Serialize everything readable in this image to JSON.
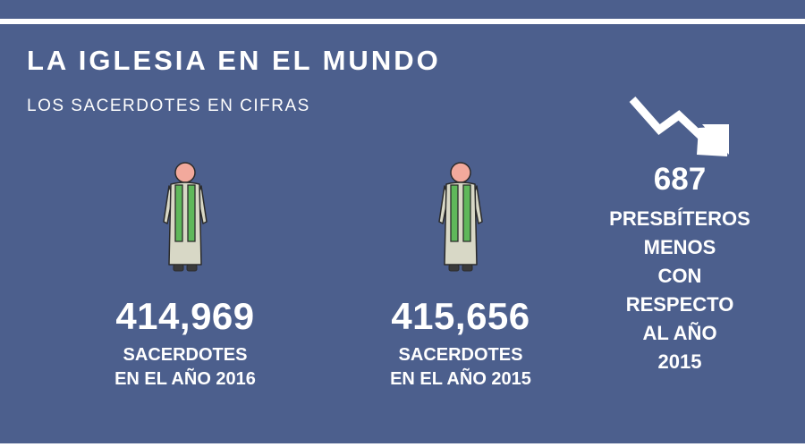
{
  "header": {
    "title": "LA IGLESIA EN EL MUNDO",
    "subtitle": "LOS SACERDOTES EN CIFRAS"
  },
  "stats": [
    {
      "value": "414,969",
      "label_line1": "SACERDOTES",
      "label_line2": "EN EL AÑO 2016",
      "icon": "priest-icon"
    },
    {
      "value": "415,656",
      "label_line1": "SACERDOTES",
      "label_line2": "EN EL AÑO 2015",
      "icon": "priest-icon"
    }
  ],
  "decrease": {
    "icon": "trend-down-arrow-icon",
    "value": "687",
    "label_lines": [
      "PRESBÍTEROS",
      "MENOS",
      "CON",
      "RESPECTO",
      "AL AÑO",
      "2015"
    ]
  },
  "colors": {
    "background": "#4c5f8d",
    "text": "#ffffff",
    "stole": "#5fb85a",
    "robe": "#d8d8c6",
    "skin": "#f2a99c"
  }
}
